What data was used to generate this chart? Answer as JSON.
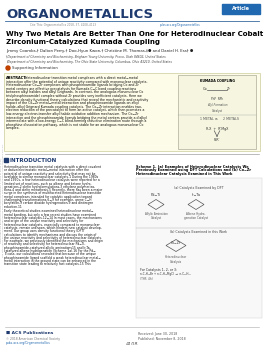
{
  "journal_name": "ORGANOMETALLICS",
  "article_label": "Article",
  "cite_line": "Cite This: Organometallics 2018, 37, 4108–4123",
  "doi_line": "pubs.acs.org/Organometallics",
  "title_line1": "Why Two Metals Are Better Than One for Heterodinuclear Cobalt−",
  "title_line2": "Zirconium-Catalyzed Kumada Coupling",
  "authors": "Jimmy Coombs,† Dalton Perry,† Doo-Hyun Kwon,† Christine M. Thomas,‡● and Daniel H. Ess† ●",
  "affil1": "†Department of Chemistry and Biochemistry, Brigham Young University, Provo, Utah 84602, United States",
  "affil2": "‡Department of Chemistry and Biochemistry, The Ohio State University, Columbus, Ohio 43210, United States",
  "supporting_info": "Supporting Information",
  "abstract_label": "ABSTRACT:",
  "abstract_lines": [
    "Heterodinuclear transition metal complexes with a direct metal−metal",
    "interaction offer the potential of unique reactivity compared with mononuclear catalysts.",
    "Heterodinuclear Co−Zr complexes with phosphinoamide ligands bridging Co and Zr",
    "metal centers are effective precatalysts for Kumada C−C bond coupling reactions",
    "between alkyl halides and alkyl Grignards. In contrast, the analogous mononuclear Co",
    "tris(phosphinoamide) complex without Zr provides very inefficient catalysts. Here we",
    "describe density functional theory calculations that reveal the mechanistic and reactivity",
    "impact of the Co−Zr metal−metal interaction and phosphinoamide ligands on alkyl",
    "halide–alkyl Grignard Kumada coupling catalysis. The Co−Zr interaction enables two-",
    "electron reduction of the precatalyst to form an active catalyst, which then promotes a",
    "low-energy electron-transfer alkyl halide oxidative addition mechanism. The Co−Zr",
    "interaction and the phosphinoamide ligands bridging the metal centers provide a dialkyl",
    "intermediate with a low-energy C−C bond-forming reductive elimination route through a",
    "phosphine dissociation pathway, which is not stable for an analogous mononuclear Co",
    "complex."
  ],
  "kumada_label": "KUMADA COUPLING",
  "intro_title": "INTRODUCTION",
  "intro_lines": [
    "Heterodinuclear transition metal catalysts with a direct covalent",
    "or dative/electrostatic metal−metal interaction offer the",
    "potential of unique reactivity and selectivity that may not be",
    "available to similar mononuclear catalysts.1 During the 1980s",
    "and 1990s, a few heterodinuclear catalysts were reported for a",
    "limited set of reactions, such as alkene and ketone hydro-",
    "genations,2 olefin hydroformylations,3 ethylene polymeriza-",
    "tions,4 and olefin metathesis.5 Recently, there has been a major",
    "surge in the synthesis of multifaceted heterodinuclear transition",
    "metal complexes intended for catalytic application toward",
    "challenging transformations,6−9 for example, arene C−H",
    "borylation,9 carbon dioxide hydrogenation,9 and dinitrogen",
    "reduction.11",
    "",
    "Early theoretical studies examined heterodinuclear metal−",
    "metal bonding, but only a few recent studies have examined",
    "heterodinuclear catalysis.12−14 In most cases, the mechanisms",
    "and origin of the unique reactivity and selectivity for",
    "heterodinuclear catalysts, especially compared to mononuclear",
    "catalysts, remain unknown, which hinders new catalyst develop-",
    "ment. Our group uses density functional theory (DFT)",
    "calculations to identify mechanisms and discuss the origin of",
    "the unique reactivity and selectivity of heterodinuclear catalysts.",
    "For example, we previously identified the mechanisms and origin",
    "of reactivity and selectivity for heterodinuclear Pd−Ti-",
    "phosphinoamide-catalyzed allylic aminations15 and Ir-Ta-",
    "catalyzed alkene hydrogenation (Scheme 1a).16 For the Pd−",
    "Ti case, our calculations revealed that because of the unique",
    "phosphinoamide ligand scaffold a weak heterodinuclear metal−",
    "metal interaction in the ground state can be enhanced in the",
    "transition state leading to relatively fast catalysis.15 This"
  ],
  "scheme_title_lines": [
    "Scheme 1. (a) Examples of Heterodinuclear Catalysts We",
    "Previously Examined using DFT Calculations and (b) Co−Zr",
    "Heterodinuclear Catalysis Examined in This Work"
  ],
  "received": "Received: June 30, 2018",
  "published": "Published: November 8, 2018",
  "page_num": "4108",
  "copyright": "© 2018 American Chemical Society",
  "bg_color": "#ffffff",
  "journal_color": "#1e3a6e",
  "article_tag_bg": "#2068b0",
  "abstract_bg": "#fdfce8",
  "intro_color": "#1e3a6e",
  "sidebar_color": "#bbbbbb",
  "footer_line_color": "#aaaaaa",
  "header_line_color": "#3a6aa0"
}
